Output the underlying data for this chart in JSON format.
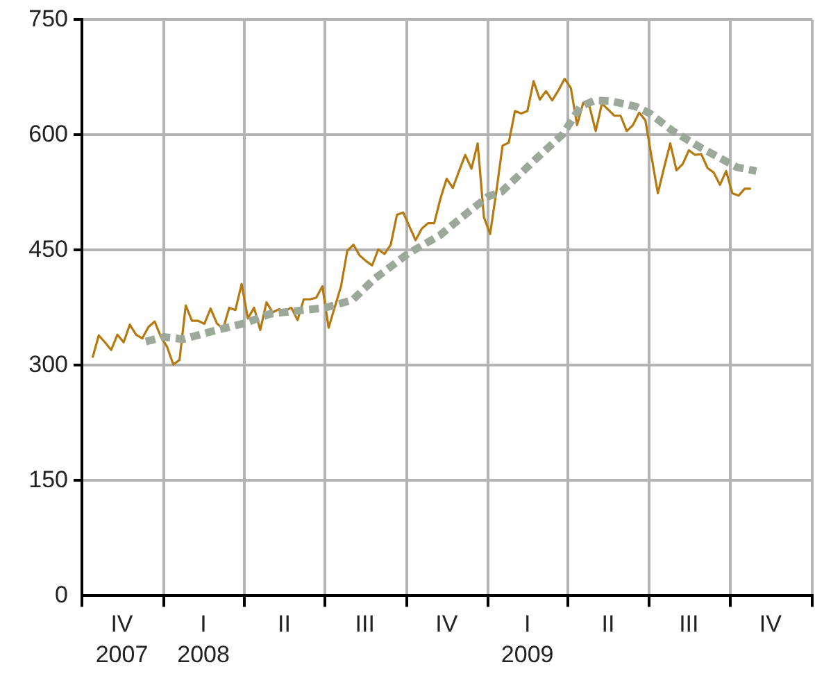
{
  "chart_data": {
    "type": "line",
    "xlim": [
      "2007-10-01",
      "2010-01-01"
    ],
    "xticks": [
      {
        "value": "2007-10-01",
        "label": null
      },
      {
        "value": "2007-11-15",
        "label": "IV\n2007"
      },
      {
        "value": "2008-01-01",
        "label": null
      },
      {
        "value": "2008-02-15",
        "label": "I\n2008"
      },
      {
        "value": "2008-04-01",
        "label": null
      },
      {
        "value": "2008-05-16",
        "label": "II"
      },
      {
        "value": "2008-07-01",
        "label": null
      },
      {
        "value": "2008-08-15",
        "label": "III"
      },
      {
        "value": "2008-10-01",
        "label": null
      },
      {
        "value": "2008-11-15",
        "label": "IV"
      },
      {
        "value": "2009-01-01",
        "label": null
      },
      {
        "value": "2009-02-14",
        "label": "I\n2009"
      },
      {
        "value": "2009-04-01",
        "label": null
      },
      {
        "value": "2009-05-16",
        "label": "II"
      },
      {
        "value": "2009-07-01",
        "label": null
      },
      {
        "value": "2009-08-15",
        "label": "III"
      },
      {
        "value": "2009-10-01",
        "label": null
      },
      {
        "value": "2009-11-15",
        "label": "IV"
      },
      {
        "value": "2010-01-01",
        "label": null
      }
    ],
    "ylim": [
      0,
      750
    ],
    "yticks": [
      0,
      150,
      300,
      450,
      600,
      750
    ],
    "grid": true,
    "legend": false,
    "marker": "none",
    "series": [
      {
        "color": "#b5790f",
        "line_style": "solid",
        "x": [
          "2007-10-13",
          "2007-10-20",
          "2007-10-27",
          "2007-11-03",
          "2007-11-10",
          "2007-11-17",
          "2007-11-24",
          "2007-12-01",
          "2007-12-08",
          "2007-12-15",
          "2007-12-22",
          "2007-12-29",
          "2008-01-05",
          "2008-01-12",
          "2008-01-19",
          "2008-01-26",
          "2008-02-02",
          "2008-02-09",
          "2008-02-16",
          "2008-02-23",
          "2008-03-01",
          "2008-03-08",
          "2008-03-15",
          "2008-03-22",
          "2008-03-29",
          "2008-04-05",
          "2008-04-12",
          "2008-04-19",
          "2008-04-26",
          "2008-05-03",
          "2008-05-10",
          "2008-05-17",
          "2008-05-24",
          "2008-05-31",
          "2008-06-07",
          "2008-06-14",
          "2008-06-21",
          "2008-06-28",
          "2008-07-05",
          "2008-07-12",
          "2008-07-19",
          "2008-07-26",
          "2008-08-02",
          "2008-08-09",
          "2008-08-16",
          "2008-08-23",
          "2008-08-30",
          "2008-09-06",
          "2008-09-13",
          "2008-09-20",
          "2008-09-27",
          "2008-10-04",
          "2008-10-11",
          "2008-10-18",
          "2008-10-25",
          "2008-11-01",
          "2008-11-08",
          "2008-11-15",
          "2008-11-22",
          "2008-11-29",
          "2008-12-06",
          "2008-12-13",
          "2008-12-20",
          "2008-12-27",
          "2009-01-03",
          "2009-01-10",
          "2009-01-17",
          "2009-01-24",
          "2009-01-31",
          "2009-02-07",
          "2009-02-14",
          "2009-02-21",
          "2009-02-28",
          "2009-03-07",
          "2009-03-14",
          "2009-03-21",
          "2009-03-28",
          "2009-04-04",
          "2009-04-11",
          "2009-04-18",
          "2009-04-25",
          "2009-05-02",
          "2009-05-09",
          "2009-05-16",
          "2009-05-23",
          "2009-05-30",
          "2009-06-06",
          "2009-06-13",
          "2009-06-20",
          "2009-06-27",
          "2009-07-04",
          "2009-07-11",
          "2009-07-18",
          "2009-07-25",
          "2009-08-01",
          "2009-08-08",
          "2009-08-15",
          "2009-08-22",
          "2009-08-29",
          "2009-09-05",
          "2009-09-12",
          "2009-09-19",
          "2009-09-26",
          "2009-10-03",
          "2009-10-10",
          "2009-10-17",
          "2009-10-24"
        ],
        "values": [
          310,
          339,
          330,
          320,
          340,
          330,
          353,
          340,
          335,
          350,
          357,
          337,
          324,
          301,
          307,
          378,
          358,
          358,
          354,
          374,
          355,
          347,
          375,
          372,
          406,
          361,
          375,
          346,
          382,
          369,
          373,
          371,
          375,
          359,
          386,
          386,
          388,
          403,
          349,
          376,
          403,
          449,
          457,
          443,
          436,
          430,
          451,
          445,
          457,
          496,
          499,
          481,
          463,
          478,
          485,
          485,
          517,
          543,
          531,
          553,
          574,
          556,
          589,
          493,
          471,
          526,
          586,
          590,
          631,
          628,
          631,
          670,
          646,
          657,
          645,
          658,
          673,
          661,
          613,
          642,
          637,
          605,
          641,
          633,
          625,
          625,
          605,
          613,
          629,
          619,
          571,
          524,
          557,
          589,
          554,
          562,
          580,
          574,
          575,
          557,
          551,
          535,
          553,
          524,
          521,
          530,
          530
        ]
      },
      {
        "color": "#9ca89a",
        "line_style": "dotted",
        "x": [
          "2007-12-12",
          "2008-01-01",
          "2008-01-23",
          "2008-02-27",
          "2008-04-02",
          "2008-04-30",
          "2008-05-31",
          "2008-07-01",
          "2008-08-01",
          "2008-08-25",
          "2008-10-02",
          "2008-11-07",
          "2008-12-12",
          "2009-01-01",
          "2009-01-16",
          "2009-02-23",
          "2009-03-26",
          "2009-04-15",
          "2009-05-01",
          "2009-05-19",
          "2009-06-16",
          "2009-07-02",
          "2009-07-28",
          "2009-08-29",
          "2009-10-08",
          "2009-10-30"
        ],
        "values": [
          331,
          337,
          334,
          345,
          355,
          367,
          371,
          375,
          385,
          412,
          445,
          469,
          502,
          520,
          526,
          568,
          601,
          637,
          645,
          644,
          637,
          628,
          605,
          583,
          558,
          553
        ]
      }
    ]
  }
}
